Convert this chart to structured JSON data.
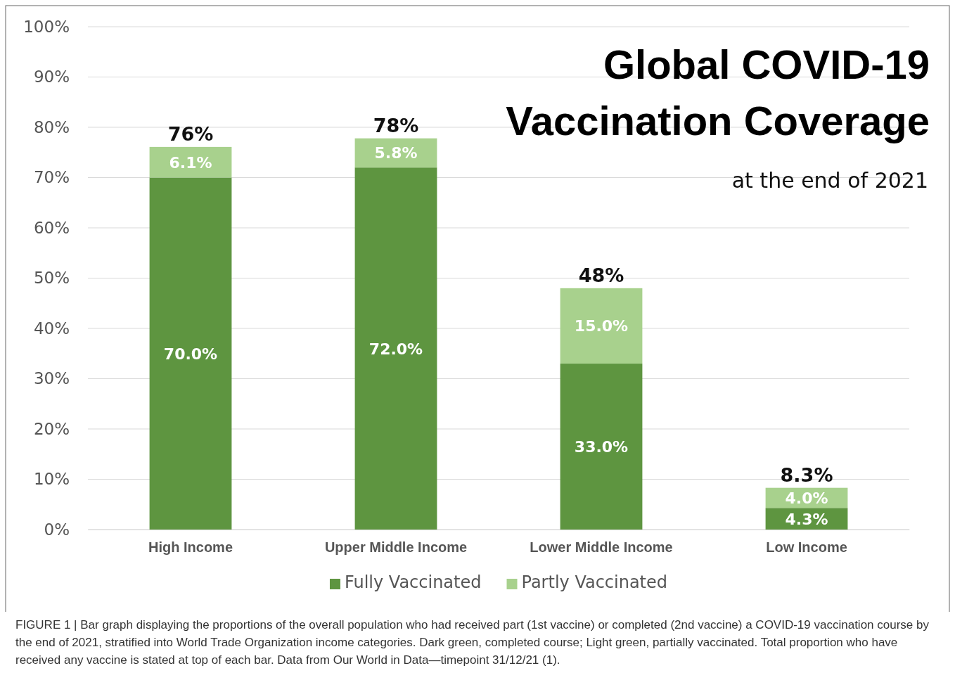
{
  "chart_data": {
    "type": "bar",
    "title": "Global COVID-19 Vaccination Coverage",
    "subtitle": "at the end of 2021",
    "categories": [
      "High Income",
      "Upper Middle Income",
      "Lower Middle Income",
      "Low Income"
    ],
    "stacked": true,
    "series": [
      {
        "name": "Fully Vaccinated",
        "color": "#5e9540",
        "values": [
          70.0,
          72.0,
          33.0,
          4.3
        ],
        "value_labels": [
          "70.0%",
          "72.0%",
          "33.0%",
          "4.3%"
        ]
      },
      {
        "name": "Partly Vaccinated",
        "color": "#a8d18d",
        "values": [
          6.1,
          5.8,
          15.0,
          4.0
        ],
        "value_labels": [
          "6.1%",
          "5.8%",
          "15.0%",
          "4.0%"
        ]
      }
    ],
    "totals": [
      "76%",
      "78%",
      "48%",
      "8.3%"
    ],
    "ylim": [
      0,
      100
    ],
    "yticks": [
      {
        "value": 0,
        "label": "0%"
      },
      {
        "value": 10,
        "label": "10%"
      },
      {
        "value": 20,
        "label": "20%"
      },
      {
        "value": 30,
        "label": "30%"
      },
      {
        "value": 40,
        "label": "40%"
      },
      {
        "value": 50,
        "label": "50%"
      },
      {
        "value": 60,
        "label": "60%"
      },
      {
        "value": 70,
        "label": "70%"
      },
      {
        "value": 80,
        "label": "80%"
      },
      {
        "value": 90,
        "label": "90%"
      },
      {
        "value": 100,
        "label": "100%"
      }
    ],
    "grid": "y",
    "legend": "bottom",
    "annotations": [
      "FIGURE 1 | Bar graph displaying the proportions of the overall population who had received part (1st vaccine) or completed (2nd vaccine) a COVID-19 vaccination course by the end of 2021, stratified into World Trade Organization income categories. Dark green, completed course; Light green, partially vaccinated. Total proportion who have received any vaccine is stated at top of each bar. Data from Our World in Data—timepoint 31/12/21 (1)."
    ]
  }
}
